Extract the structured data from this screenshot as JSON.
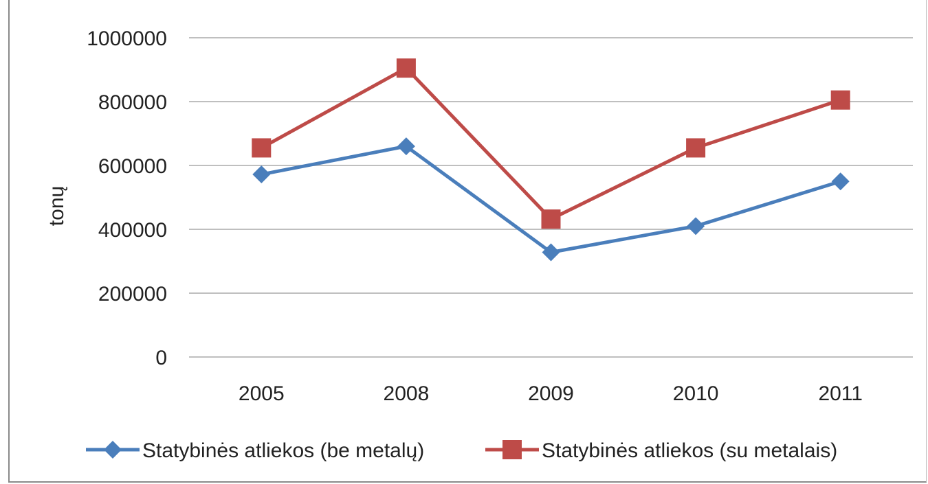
{
  "chart_data": {
    "type": "line",
    "categories": [
      "2005",
      "2008",
      "2009",
      "2010",
      "2011"
    ],
    "ylabel": "tonų",
    "ylim": [
      0,
      1000000
    ],
    "yticks": [
      0,
      200000,
      400000,
      600000,
      800000,
      1000000
    ],
    "grid": true,
    "legend": "bottom",
    "series": [
      {
        "name": "Statybinės atliekos (be metalų)",
        "values": [
          572000,
          660000,
          328000,
          410000,
          550000
        ],
        "color": "#4a7ebb",
        "marker": "diamond"
      },
      {
        "name": "Statybinės atliekos (su metalais)",
        "values": [
          655000,
          905000,
          432000,
          655000,
          805000
        ],
        "color": "#be4b48",
        "marker": "square"
      }
    ]
  }
}
